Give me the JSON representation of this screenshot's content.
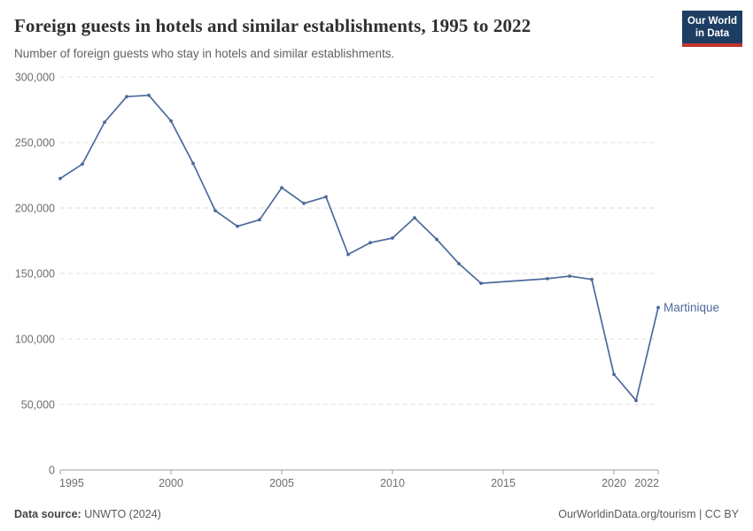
{
  "header": {
    "title": "Foreign guests in hotels and similar establishments, 1995 to 2022",
    "subtitle": "Number of foreign guests who stay in hotels and similar establishments.",
    "logo": {
      "line1": "Our World",
      "line2": "in Data"
    }
  },
  "chart_data": {
    "type": "line",
    "title": "Foreign guests in hotels and similar establishments, 1995 to 2022",
    "subtitle": "Number of foreign guests who stay in hotels and similar establishments.",
    "xlabel": "",
    "ylabel": "",
    "xlim": [
      1995,
      2022
    ],
    "ylim": [
      0,
      300000
    ],
    "x_ticks": [
      1995,
      2000,
      2005,
      2010,
      2015,
      2020,
      2022
    ],
    "y_ticks": [
      0,
      50000,
      100000,
      150000,
      200000,
      250000,
      300000
    ],
    "grid": "horizontal-dashed",
    "legend_position": "label-at-line-end",
    "series": [
      {
        "name": "Martinique",
        "color": "#4c6a9c",
        "missing_years": [
          2015,
          2016
        ],
        "points": [
          {
            "year": 1995,
            "value": 222500
          },
          {
            "year": 1996,
            "value": 233500
          },
          {
            "year": 1997,
            "value": 265500
          },
          {
            "year": 1998,
            "value": 285000
          },
          {
            "year": 1999,
            "value": 286000
          },
          {
            "year": 2000,
            "value": 266500
          },
          {
            "year": 2001,
            "value": 234000
          },
          {
            "year": 2002,
            "value": 198000
          },
          {
            "year": 2003,
            "value": 186000
          },
          {
            "year": 2004,
            "value": 191000
          },
          {
            "year": 2005,
            "value": 215500
          },
          {
            "year": 2006,
            "value": 203500
          },
          {
            "year": 2007,
            "value": 208500
          },
          {
            "year": 2008,
            "value": 164500
          },
          {
            "year": 2009,
            "value": 173500
          },
          {
            "year": 2010,
            "value": 177000
          },
          {
            "year": 2011,
            "value": 192500
          },
          {
            "year": 2012,
            "value": 176000
          },
          {
            "year": 2013,
            "value": 157500
          },
          {
            "year": 2014,
            "value": 142500
          },
          {
            "year": 2017,
            "value": 146000
          },
          {
            "year": 2018,
            "value": 148000
          },
          {
            "year": 2019,
            "value": 145500
          },
          {
            "year": 2020,
            "value": 73000
          },
          {
            "year": 2021,
            "value": 53000
          },
          {
            "year": 2022,
            "value": 124000
          }
        ]
      }
    ]
  },
  "footer": {
    "source_label": "Data source:",
    "source_value": "UNWTO (2024)",
    "link_text": "OurWorldinData.org/tourism | CC BY"
  },
  "colors": {
    "line": "#4c6a9c",
    "logo_bg": "#1d3d63",
    "logo_stripe": "#c0362c",
    "grid": "#dcdcdc",
    "axis": "#a1a1a1",
    "tick_label": "#6e6e6e",
    "title": "#2f2f2f",
    "subtitle": "#616161"
  }
}
